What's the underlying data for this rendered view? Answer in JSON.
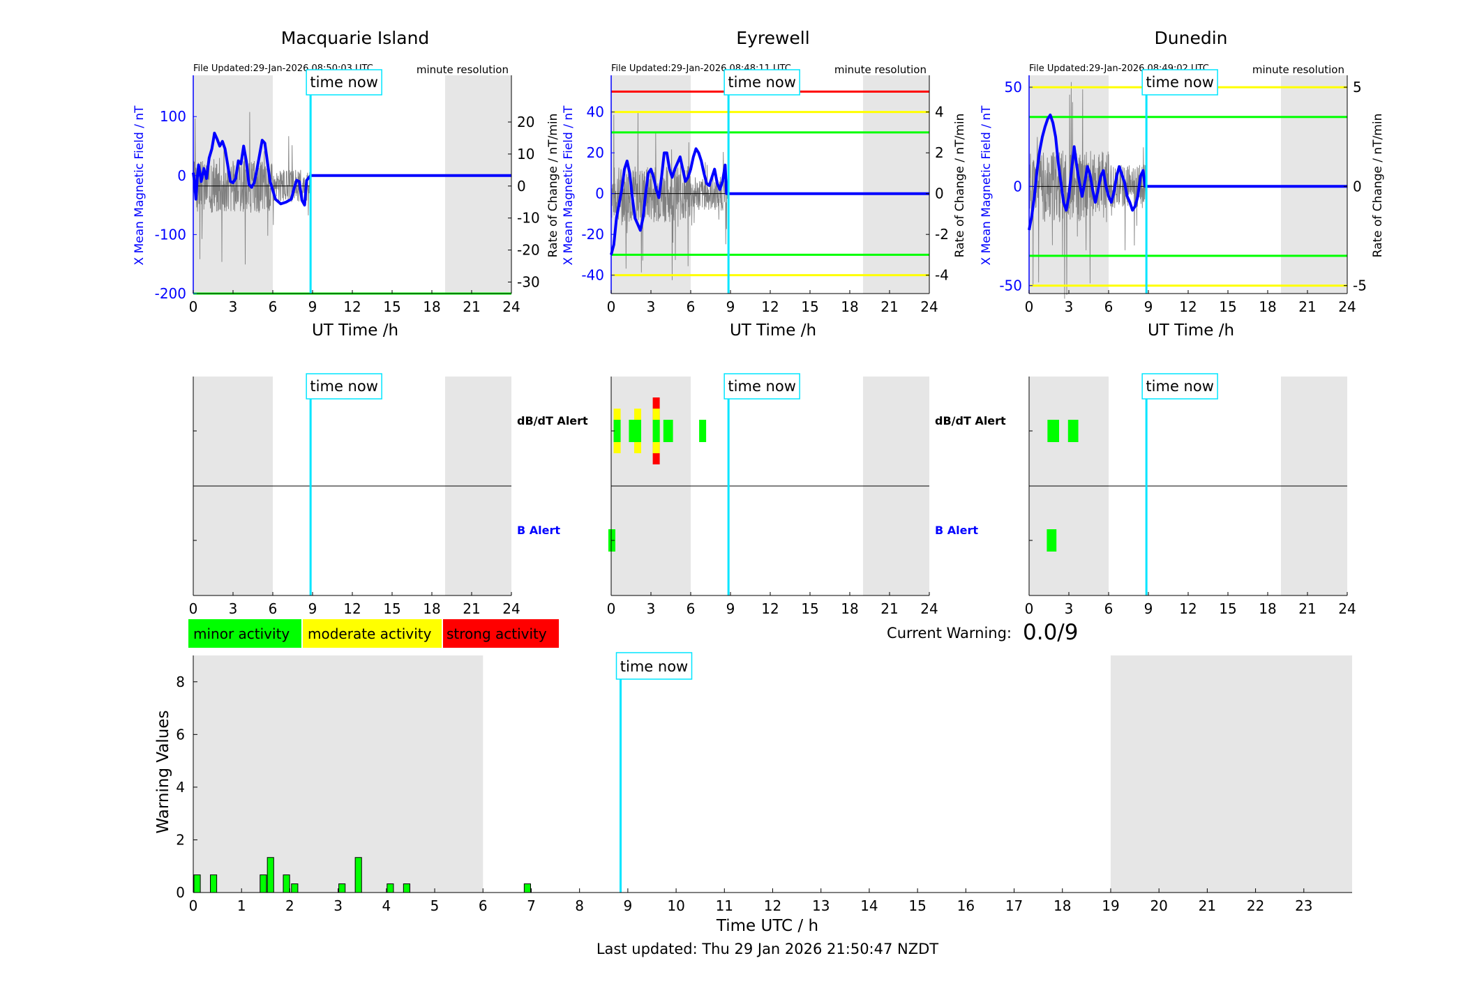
{
  "colors": {
    "field_line": "#0000ff",
    "rate_line": "#808080",
    "time_now": "#00e5ff",
    "shade": "#e6e6e6",
    "minor": "#00ff00",
    "moderate": "#ffff00",
    "strong": "#ff0000"
  },
  "time_now_label": "time now",
  "common": {
    "x_ticks": [
      "0",
      "3",
      "6",
      "9",
      "12",
      "15",
      "18",
      "21",
      "24"
    ],
    "x_label": "UT Time /h",
    "resolution": "minute resolution",
    "y_left_label": "X Mean Magnetic Field / nT",
    "y_right_label": "Rate of Change / nT/min",
    "alert_dbdt": "dB/dT Alert",
    "alert_b": "B Alert",
    "shade_hours": [
      [
        0,
        6
      ],
      [
        19,
        24
      ]
    ],
    "time_now_hour": 8.85
  },
  "chart_data": [
    {
      "type": "line",
      "title": "Macquarie Island",
      "file_updated": "File Updated:29-Jan-2026 08:50:03 UTC",
      "y_left": {
        "lim": [
          -200,
          170
        ],
        "ticks": [
          -200,
          -100,
          0,
          100
        ],
        "labels": [
          "-200",
          "-100",
          "0",
          "100"
        ]
      },
      "y_right": {
        "lim": [
          -33.6,
          34.6
        ],
        "ticks": [
          -30,
          -20,
          -10,
          0,
          10,
          20
        ],
        "labels": [
          "-30",
          "-20",
          "-10",
          "0",
          "10",
          "20"
        ]
      },
      "thresholds": [
        {
          "value": -200,
          "color": "minor"
        }
      ],
      "field_series": [
        [
          0,
          5
        ],
        [
          0.1,
          -12
        ],
        [
          0.2,
          -40
        ],
        [
          0.3,
          -5
        ],
        [
          0.4,
          18
        ],
        [
          0.6,
          -10
        ],
        [
          0.8,
          12
        ],
        [
          1.0,
          -5
        ],
        [
          1.2,
          30
        ],
        [
          1.4,
          45
        ],
        [
          1.5,
          58
        ],
        [
          1.6,
          72
        ],
        [
          1.8,
          62
        ],
        [
          2.0,
          50
        ],
        [
          2.2,
          58
        ],
        [
          2.4,
          45
        ],
        [
          2.6,
          18
        ],
        [
          2.8,
          -10
        ],
        [
          3.0,
          -12
        ],
        [
          3.2,
          -5
        ],
        [
          3.4,
          25
        ],
        [
          3.6,
          20
        ],
        [
          3.8,
          50
        ],
        [
          4.0,
          25
        ],
        [
          4.2,
          -15
        ],
        [
          4.4,
          -20
        ],
        [
          4.6,
          -12
        ],
        [
          4.8,
          10
        ],
        [
          5.0,
          35
        ],
        [
          5.2,
          60
        ],
        [
          5.4,
          55
        ],
        [
          5.6,
          22
        ],
        [
          5.8,
          -10
        ],
        [
          6.0,
          -25
        ],
        [
          6.2,
          -40
        ],
        [
          6.6,
          -48
        ],
        [
          7.0,
          -45
        ],
        [
          7.4,
          -40
        ],
        [
          7.6,
          -22
        ],
        [
          7.8,
          -8
        ],
        [
          8.0,
          -10
        ],
        [
          8.2,
          -42
        ],
        [
          8.4,
          -50
        ],
        [
          8.55,
          -8
        ],
        [
          8.85,
          0
        ],
        [
          24,
          0
        ]
      ],
      "rate_seed": 3,
      "rate_amp": 12,
      "alerts": {
        "dbdt": [],
        "b": []
      }
    },
    {
      "type": "line",
      "title": "Eyrewell",
      "file_updated": "File Updated:29-Jan-2026 08:48:11 UTC",
      "y_left": {
        "lim": [
          -49,
          58
        ],
        "ticks": [
          -40,
          -20,
          0,
          20,
          40
        ],
        "labels": [
          "-40",
          "-20",
          "0",
          "20",
          "40"
        ]
      },
      "y_right": {
        "lim": [
          -4.9,
          5.8
        ],
        "ticks": [
          -4,
          -2,
          0,
          2,
          4
        ],
        "labels": [
          "-4",
          "-2",
          "0",
          "2",
          "4"
        ]
      },
      "thresholds": [
        {
          "value": 50,
          "color": "strong"
        },
        {
          "value": 40,
          "color": "moderate"
        },
        {
          "value": 30,
          "color": "minor"
        },
        {
          "value": -30,
          "color": "minor"
        },
        {
          "value": -40,
          "color": "moderate"
        }
      ],
      "field_series": [
        [
          0,
          -30
        ],
        [
          0.2,
          -25
        ],
        [
          0.4,
          -12
        ],
        [
          0.6,
          -5
        ],
        [
          0.8,
          2
        ],
        [
          1.0,
          12
        ],
        [
          1.2,
          16
        ],
        [
          1.4,
          10
        ],
        [
          1.6,
          -2
        ],
        [
          1.8,
          -12
        ],
        [
          2.0,
          -15
        ],
        [
          2.2,
          -18
        ],
        [
          2.4,
          -12
        ],
        [
          2.6,
          0
        ],
        [
          2.8,
          10
        ],
        [
          3.0,
          12
        ],
        [
          3.2,
          8
        ],
        [
          3.4,
          2
        ],
        [
          3.6,
          -2
        ],
        [
          3.8,
          8
        ],
        [
          4.0,
          20
        ],
        [
          4.2,
          20
        ],
        [
          4.4,
          12
        ],
        [
          4.6,
          8
        ],
        [
          4.8,
          12
        ],
        [
          5.0,
          15
        ],
        [
          5.2,
          18
        ],
        [
          5.4,
          12
        ],
        [
          5.6,
          6
        ],
        [
          5.8,
          8
        ],
        [
          6.0,
          12
        ],
        [
          6.2,
          18
        ],
        [
          6.4,
          22
        ],
        [
          6.6,
          20
        ],
        [
          6.8,
          16
        ],
        [
          7.0,
          10
        ],
        [
          7.2,
          5
        ],
        [
          7.4,
          4
        ],
        [
          7.6,
          8
        ],
        [
          7.8,
          12
        ],
        [
          8.0,
          5
        ],
        [
          8.2,
          2
        ],
        [
          8.4,
          6
        ],
        [
          8.6,
          14
        ],
        [
          8.7,
          0
        ],
        [
          8.85,
          0
        ],
        [
          24,
          0
        ]
      ],
      "rate_seed": 7,
      "rate_amp": 2.0,
      "alerts": {
        "dbdt": [
          {
            "h": 0.45,
            "level": "moderate"
          },
          {
            "h": 1.6,
            "level": "minor"
          },
          {
            "h": 2.0,
            "level": "moderate"
          },
          {
            "h": 3.4,
            "level": "strong"
          },
          {
            "h": 4.2,
            "level": "minor"
          },
          {
            "h": 4.4,
            "level": "minor"
          },
          {
            "h": 6.9,
            "level": "minor"
          }
        ],
        "b": [
          {
            "h": 0.05,
            "level": "minor"
          }
        ]
      }
    },
    {
      "type": "line",
      "title": "Dunedin",
      "file_updated": "File Updated:29-Jan-2026 08:49:02 UTC",
      "y_left": {
        "lim": [
          -54,
          56
        ],
        "ticks": [
          -50,
          0,
          50
        ],
        "labels": [
          "-50",
          "0",
          "50"
        ]
      },
      "y_right": {
        "lim": [
          -5.4,
          5.6
        ],
        "ticks": [
          -5,
          0,
          5
        ],
        "labels": [
          "-5",
          "0",
          "5"
        ]
      },
      "thresholds": [
        {
          "value": 50,
          "color": "moderate"
        },
        {
          "value": 35,
          "color": "minor"
        },
        {
          "value": -35,
          "color": "minor"
        },
        {
          "value": -50,
          "color": "moderate"
        }
      ],
      "field_series": [
        [
          0,
          -22
        ],
        [
          0.2,
          -15
        ],
        [
          0.4,
          -5
        ],
        [
          0.6,
          8
        ],
        [
          0.8,
          18
        ],
        [
          1.0,
          25
        ],
        [
          1.2,
          30
        ],
        [
          1.4,
          34
        ],
        [
          1.6,
          36
        ],
        [
          1.8,
          32
        ],
        [
          2.0,
          25
        ],
        [
          2.2,
          12
        ],
        [
          2.4,
          2
        ],
        [
          2.6,
          -8
        ],
        [
          2.8,
          -12
        ],
        [
          3.0,
          -5
        ],
        [
          3.2,
          8
        ],
        [
          3.4,
          20
        ],
        [
          3.6,
          10
        ],
        [
          3.8,
          2
        ],
        [
          4.0,
          -5
        ],
        [
          4.2,
          2
        ],
        [
          4.4,
          10
        ],
        [
          4.6,
          6
        ],
        [
          4.8,
          -2
        ],
        [
          5.0,
          -8
        ],
        [
          5.2,
          -2
        ],
        [
          5.4,
          5
        ],
        [
          5.6,
          8
        ],
        [
          5.8,
          0
        ],
        [
          6.0,
          -5
        ],
        [
          6.2,
          -8
        ],
        [
          6.4,
          -3
        ],
        [
          6.6,
          5
        ],
        [
          6.8,
          10
        ],
        [
          7.0,
          6
        ],
        [
          7.2,
          2
        ],
        [
          7.4,
          -5
        ],
        [
          7.6,
          -8
        ],
        [
          7.8,
          -12
        ],
        [
          8.0,
          -10
        ],
        [
          8.2,
          -5
        ],
        [
          8.4,
          5
        ],
        [
          8.6,
          8
        ],
        [
          8.75,
          0
        ],
        [
          8.85,
          0
        ],
        [
          24,
          0
        ]
      ],
      "rate_seed": 11,
      "rate_amp": 2.6,
      "alerts": {
        "dbdt": [
          {
            "h": 1.65,
            "level": "minor"
          },
          {
            "h": 2.0,
            "level": "minor"
          },
          {
            "h": 3.2,
            "level": "minor"
          },
          {
            "h": 3.45,
            "level": "minor"
          }
        ],
        "b": [
          {
            "h": 1.6,
            "level": "minor"
          },
          {
            "h": 1.8,
            "level": "minor"
          }
        ]
      }
    },
    {
      "type": "bar",
      "title": "",
      "xlabel": "Time UTC / h",
      "ylabel": "Warning Values",
      "ylim": [
        0,
        9
      ],
      "y_ticks": [
        "0",
        "2",
        "4",
        "6",
        "8"
      ],
      "x_ticks": [
        "0",
        "1",
        "2",
        "3",
        "4",
        "5",
        "6",
        "7",
        "8",
        "9",
        "10",
        "11",
        "12",
        "13",
        "14",
        "15",
        "16",
        "17",
        "18",
        "19",
        "20",
        "21",
        "22",
        "23"
      ],
      "x_lim": [
        0,
        24
      ],
      "bars": [
        {
          "h": 0.08,
          "value": 0.67
        },
        {
          "h": 0.42,
          "value": 0.67
        },
        {
          "h": 1.45,
          "value": 0.67
        },
        {
          "h": 1.6,
          "value": 1.33
        },
        {
          "h": 1.93,
          "value": 0.67
        },
        {
          "h": 2.1,
          "value": 0.33
        },
        {
          "h": 3.08,
          "value": 0.33
        },
        {
          "h": 3.42,
          "value": 1.33
        },
        {
          "h": 4.08,
          "value": 0.33
        },
        {
          "h": 4.42,
          "value": 0.33
        },
        {
          "h": 6.92,
          "value": 0.33
        }
      ]
    }
  ],
  "legend": {
    "minor": "minor activity",
    "moderate": "moderate activity",
    "strong": "strong activity"
  },
  "current_warning": {
    "label": "Current Warning:",
    "value": "0.0/9"
  },
  "last_updated": "Last updated: Thu 29 Jan 2026 21:50:47 NZDT"
}
